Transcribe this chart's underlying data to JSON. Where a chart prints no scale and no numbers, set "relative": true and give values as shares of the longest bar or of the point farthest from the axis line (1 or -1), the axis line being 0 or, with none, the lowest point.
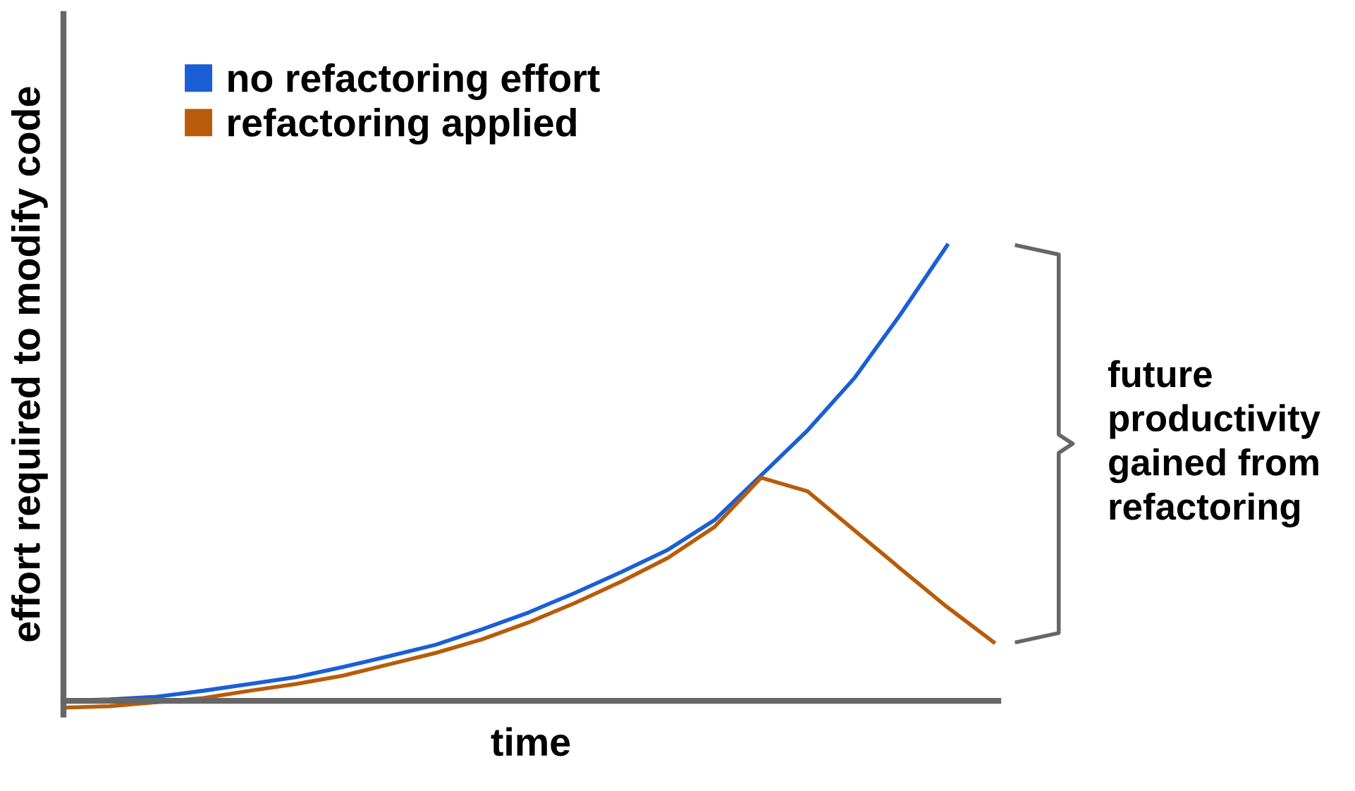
{
  "chart_data": {
    "type": "line",
    "relative": true,
    "xlabel": "time",
    "ylabel": "effort required to modify code",
    "categories": [
      null,
      null,
      null,
      null,
      null,
      null,
      null,
      null,
      null,
      null,
      null,
      null,
      null,
      null,
      null,
      null,
      null,
      null,
      null,
      null,
      null
    ],
    "series": [
      {
        "name": "no refactoring effort",
        "color": "#1a5fd6",
        "values": [
          0,
          0.003,
          0.009,
          0.022,
          0.037,
          0.052,
          0.074,
          0.098,
          0.123,
          0.157,
          0.194,
          0.237,
          0.283,
          0.332,
          0.397,
          0.495,
          0.594,
          0.708,
          0.849,
          1,
          null
        ]
      },
      {
        "name": "refactoring applied",
        "color": "#b85c0a",
        "values": [
          -0.015,
          -0.012,
          -0.003,
          0.006,
          0.022,
          0.037,
          0.055,
          0.08,
          0.105,
          0.135,
          0.172,
          0.215,
          0.262,
          0.314,
          0.382,
          0.49,
          0.46,
          0.375,
          0.29,
          0.206,
          0.129
        ]
      }
    ],
    "annotations": [
      "future\nproductivity\ngained from\nrefactoring"
    ],
    "legend": "top left",
    "grid": false,
    "marker": "none",
    "line_style": "solid"
  }
}
